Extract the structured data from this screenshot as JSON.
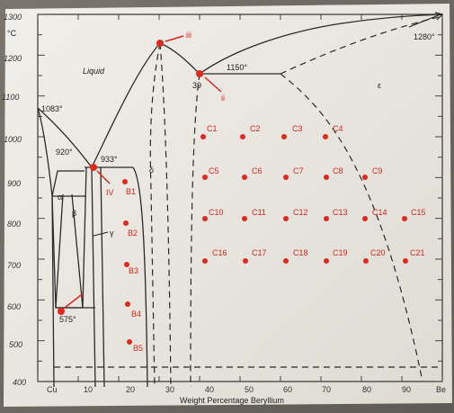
{
  "axes": {
    "y_unit": "°C",
    "y_ticks": [
      "1300",
      "1200",
      "1100",
      "1000",
      "900",
      "800",
      "700",
      "600",
      "500",
      "400"
    ],
    "x_ticks": [
      "Cu",
      "10",
      "20",
      "30",
      "40",
      "50",
      "60",
      "70",
      "80",
      "90",
      "Be"
    ],
    "x_label": "Weight Percentage Beryllium"
  },
  "regions": {
    "liquid": "Liquid",
    "alpha": "α",
    "beta": "β",
    "gamma": "γ",
    "delta": "δ",
    "epsilon": "ε"
  },
  "temperatures": {
    "t1083": "1083°",
    "t920": "920°",
    "t933": "933°",
    "t1150": "1150°",
    "t1280": "1280°",
    "t575": "575°",
    "c39": "39"
  },
  "marked_points": [
    {
      "label": "iii"
    },
    {
      "label": "ii"
    },
    {
      "label": "i"
    },
    {
      "label": "IV"
    }
  ],
  "sample_points": [
    {
      "label": "B1"
    },
    {
      "label": "B2"
    },
    {
      "label": "B3"
    },
    {
      "label": "B4"
    },
    {
      "label": "B5"
    },
    {
      "label": "C1"
    },
    {
      "label": "C2"
    },
    {
      "label": "C3"
    },
    {
      "label": "C4"
    },
    {
      "label": "C5"
    },
    {
      "label": "C6"
    },
    {
      "label": "C7"
    },
    {
      "label": "C8"
    },
    {
      "label": "C9"
    },
    {
      "label": "C10"
    },
    {
      "label": "C11"
    },
    {
      "label": "C12"
    },
    {
      "label": "C13"
    },
    {
      "label": "C14"
    },
    {
      "label": "C15"
    },
    {
      "label": "C16"
    },
    {
      "label": "C17"
    },
    {
      "label": "C18"
    },
    {
      "label": "C19"
    },
    {
      "label": "C20"
    },
    {
      "label": "C21"
    }
  ]
}
